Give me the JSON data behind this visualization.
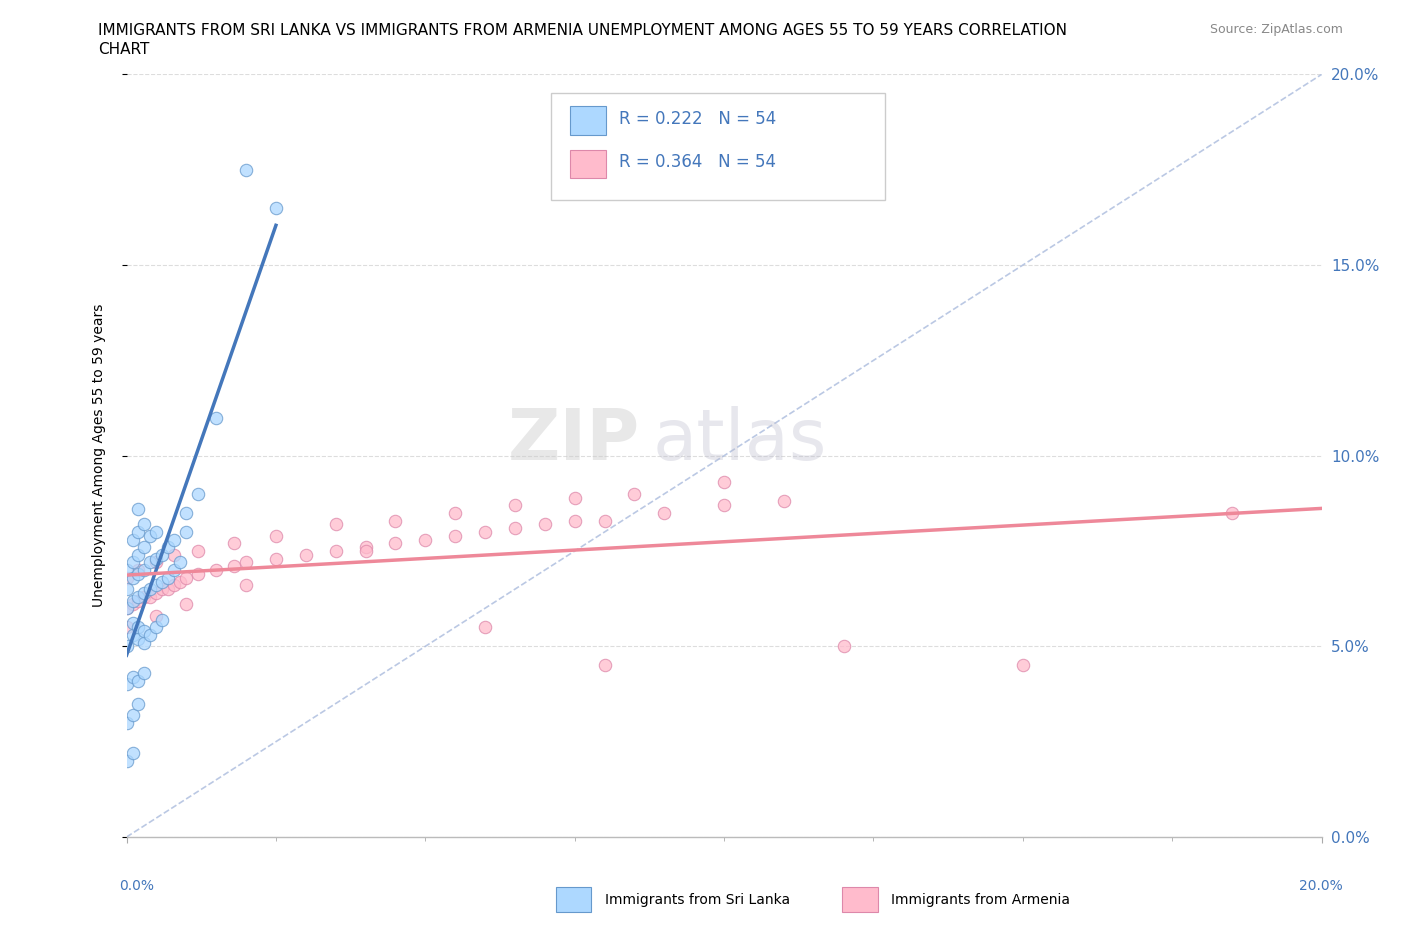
{
  "title_line1": "IMMIGRANTS FROM SRI LANKA VS IMMIGRANTS FROM ARMENIA UNEMPLOYMENT AMONG AGES 55 TO 59 YEARS CORRELATION",
  "title_line2": "CHART",
  "source": "Source: ZipAtlas.com",
  "ylabel": "Unemployment Among Ages 55 to 59 years",
  "legend1_label": "Immigrants from Sri Lanka",
  "legend2_label": "Immigrants from Armenia",
  "r1": 0.222,
  "n1": 54,
  "r2": 0.364,
  "n2": 54,
  "color_sl_fill": "#add8ff",
  "color_sl_edge": "#6699cc",
  "color_arm_fill": "#ffbbcc",
  "color_arm_edge": "#dd88aa",
  "color_sl_line": "#4477bb",
  "color_arm_line": "#ee8899",
  "color_diag": "#aabbdd",
  "watermark_zip": "ZIP",
  "watermark_atlas": "atlas",
  "sri_lanka_x": [
    0.0,
    0.0,
    0.0,
    0.001,
    0.001,
    0.001,
    0.001,
    0.002,
    0.002,
    0.002,
    0.002,
    0.002,
    0.003,
    0.003,
    0.003,
    0.003,
    0.004,
    0.004,
    0.004,
    0.005,
    0.005,
    0.005,
    0.006,
    0.006,
    0.007,
    0.007,
    0.008,
    0.008,
    0.009,
    0.01,
    0.0,
    0.001,
    0.001,
    0.002,
    0.002,
    0.003,
    0.003,
    0.004,
    0.005,
    0.006,
    0.0,
    0.001,
    0.002,
    0.003,
    0.0,
    0.001,
    0.0,
    0.001,
    0.002,
    0.01,
    0.012,
    0.015,
    0.02,
    0.025
  ],
  "sri_lanka_y": [
    0.06,
    0.065,
    0.07,
    0.062,
    0.068,
    0.072,
    0.078,
    0.063,
    0.069,
    0.074,
    0.08,
    0.086,
    0.064,
    0.07,
    0.076,
    0.082,
    0.065,
    0.072,
    0.079,
    0.066,
    0.073,
    0.08,
    0.067,
    0.074,
    0.068,
    0.076,
    0.07,
    0.078,
    0.072,
    0.08,
    0.05,
    0.053,
    0.056,
    0.052,
    0.055,
    0.051,
    0.054,
    0.053,
    0.055,
    0.057,
    0.04,
    0.042,
    0.041,
    0.043,
    0.03,
    0.032,
    0.02,
    0.022,
    0.035,
    0.085,
    0.09,
    0.11,
    0.175,
    0.165
  ],
  "armenia_x": [
    0.0,
    0.001,
    0.002,
    0.003,
    0.004,
    0.005,
    0.006,
    0.007,
    0.008,
    0.009,
    0.01,
    0.012,
    0.015,
    0.018,
    0.02,
    0.025,
    0.03,
    0.035,
    0.04,
    0.045,
    0.05,
    0.055,
    0.06,
    0.065,
    0.07,
    0.075,
    0.08,
    0.09,
    0.1,
    0.11,
    0.0,
    0.002,
    0.005,
    0.008,
    0.012,
    0.018,
    0.025,
    0.035,
    0.045,
    0.055,
    0.065,
    0.075,
    0.085,
    0.1,
    0.0,
    0.005,
    0.01,
    0.02,
    0.04,
    0.06,
    0.08,
    0.12,
    0.15,
    0.185
  ],
  "armenia_y": [
    0.06,
    0.061,
    0.062,
    0.063,
    0.063,
    0.064,
    0.065,
    0.065,
    0.066,
    0.067,
    0.068,
    0.069,
    0.07,
    0.071,
    0.072,
    0.073,
    0.074,
    0.075,
    0.076,
    0.077,
    0.078,
    0.079,
    0.08,
    0.081,
    0.082,
    0.083,
    0.083,
    0.085,
    0.087,
    0.088,
    0.068,
    0.07,
    0.072,
    0.074,
    0.075,
    0.077,
    0.079,
    0.082,
    0.083,
    0.085,
    0.087,
    0.089,
    0.09,
    0.093,
    0.055,
    0.058,
    0.061,
    0.066,
    0.075,
    0.055,
    0.045,
    0.05,
    0.045,
    0.085
  ],
  "xlim": [
    0.0,
    0.2
  ],
  "ylim": [
    0.0,
    0.2
  ],
  "yticks": [
    0.0,
    0.05,
    0.1,
    0.15,
    0.2
  ],
  "xtick_minor_count": 9
}
